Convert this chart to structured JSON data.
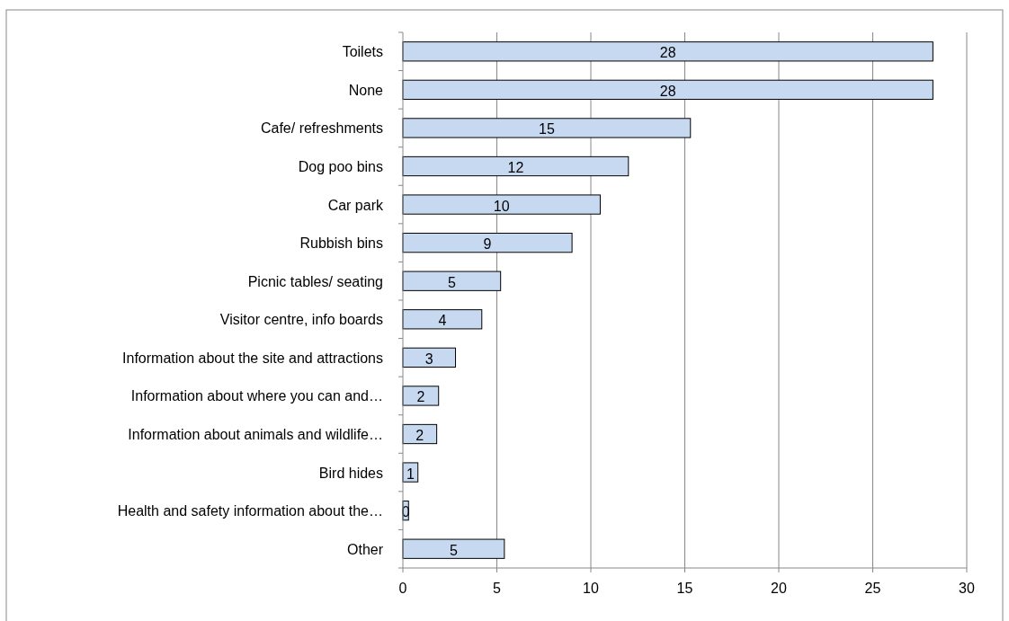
{
  "chart_data": {
    "type": "bar",
    "orientation": "horizontal",
    "categories": [
      "Toilets",
      "None",
      "Cafe/ refreshments",
      "Dog poo bins",
      "Car park",
      "Rubbish bins",
      "Picnic tables/ seating",
      "Visitor centre, info boards",
      "Information about the site and attractions",
      "Information about where you can and…",
      "Information about animals and wildlife…",
      "Bird hides",
      "Health and safety information about the…",
      "Other"
    ],
    "values": [
      28.2,
      28.2,
      15.3,
      12.0,
      10.5,
      9.0,
      5.2,
      4.2,
      2.8,
      1.9,
      1.8,
      0.8,
      0.3,
      5.4
    ],
    "value_labels": [
      "28",
      "28",
      "15",
      "12",
      "10",
      "9",
      "5",
      "4",
      "3",
      "2",
      "2",
      "1",
      "0",
      "5"
    ],
    "color": "#c6d9f1",
    "xlim": [
      0,
      30
    ],
    "xticks": [
      0,
      5,
      10,
      15,
      20,
      25,
      30
    ],
    "grid": "x"
  }
}
